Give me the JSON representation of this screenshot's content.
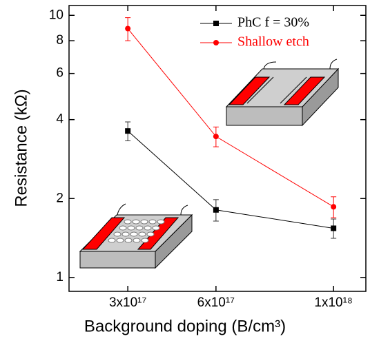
{
  "chart_data": {
    "type": "line",
    "xlabel": "Background doping (B/cm³)",
    "ylabel": "Resistance (kΩ)",
    "x": [
      3e+17,
      6e+17,
      1e+18
    ],
    "xlim": [
      1e+17,
      1.11e+18
    ],
    "xticks": [
      {
        "value": 3e+17,
        "label": "3x10¹⁷"
      },
      {
        "value": 6e+17,
        "label": "6x10¹⁷"
      },
      {
        "value": 1e+18,
        "label": "1x10¹⁸"
      }
    ],
    "ylim": [
      0.885,
      10.9
    ],
    "yticks": [
      1,
      2,
      4,
      6,
      8,
      10
    ],
    "log_y": true,
    "legend": "upper right",
    "series": [
      {
        "name": "PhC f = 30%",
        "color": "#000000",
        "marker": "square",
        "values": [
          3.62,
          1.81,
          1.54
        ],
        "errors": [
          0.3,
          0.17,
          0.13
        ]
      },
      {
        "name": "Shallow etch",
        "color": "#ff0000",
        "marker": "circle",
        "values": [
          8.9,
          3.45,
          1.86
        ],
        "errors": [
          0.9,
          0.3,
          0.17
        ]
      }
    ]
  }
}
